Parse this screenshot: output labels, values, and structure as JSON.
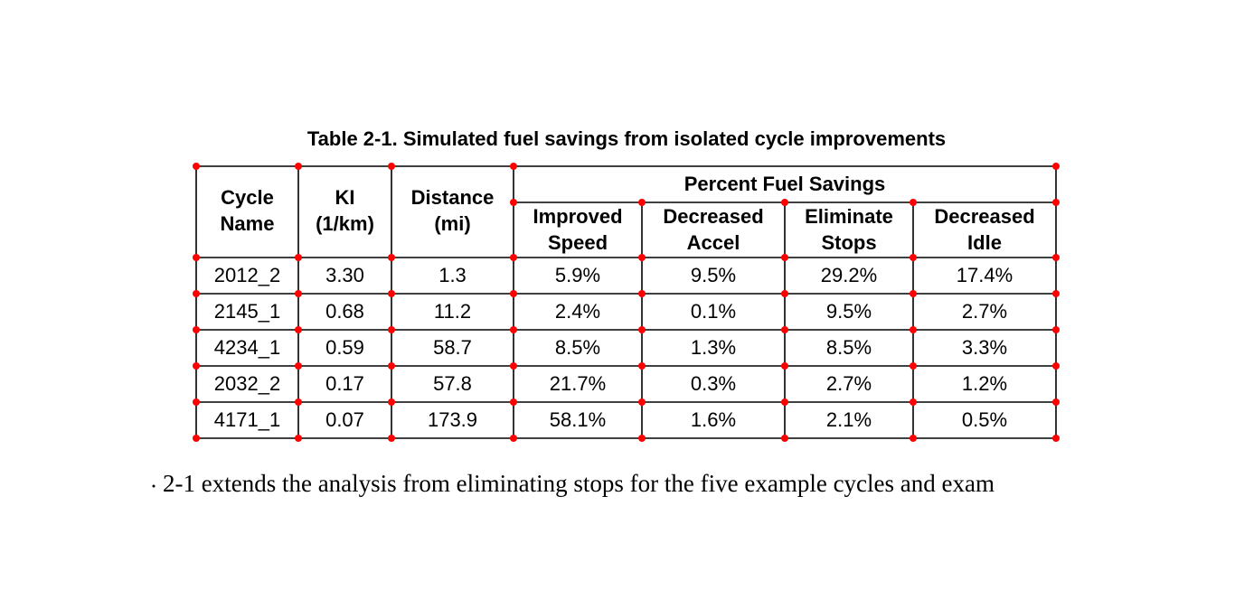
{
  "header": {
    "title": "Table 2-1. Simulated fuel savings from isolated cycle improvements"
  },
  "table": {
    "group_header": "Percent Fuel Savings",
    "columns": [
      [
        "Cycle",
        "Name"
      ],
      [
        "KI",
        "(1/km)"
      ],
      [
        "Distance",
        "(mi)"
      ],
      [
        "Improved",
        "Speed"
      ],
      [
        "Decreased",
        "Accel"
      ],
      [
        "Eliminate",
        "Stops"
      ],
      [
        "Decreased",
        "Idle"
      ]
    ],
    "rows": [
      [
        "2012_2",
        "3.30",
        "1.3",
        "5.9%",
        "9.5%",
        "29.2%",
        "17.4%"
      ],
      [
        "2145_1",
        "0.68",
        "11.2",
        "2.4%",
        "0.1%",
        "9.5%",
        "2.7%"
      ],
      [
        "4234_1",
        "0.59",
        "58.7",
        "8.5%",
        "1.3%",
        "8.5%",
        "3.3%"
      ],
      [
        "2032_2",
        "0.17",
        "57.8",
        "21.7%",
        "0.3%",
        "2.7%",
        "1.2%"
      ],
      [
        "4171_1",
        "0.07",
        "173.9",
        "58.1%",
        "1.6%",
        "2.1%",
        "0.5%"
      ]
    ]
  },
  "body": {
    "text": "2-1 extends the analysis from eliminating stops for the five example cycles and exam"
  }
}
